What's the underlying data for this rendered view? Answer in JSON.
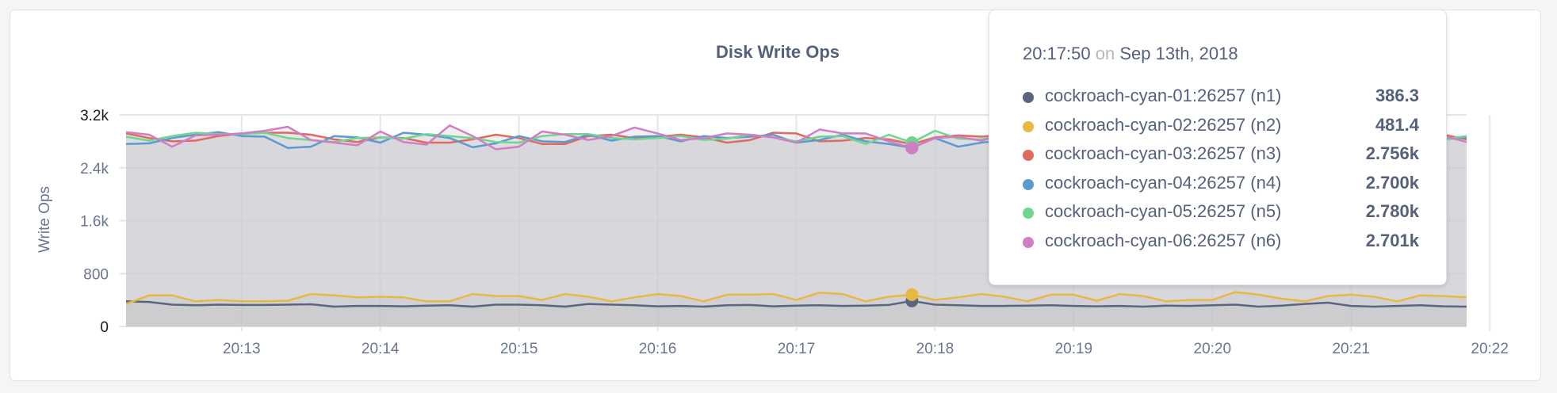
{
  "chart_data": {
    "type": "line",
    "title": "Disk Write Ops",
    "ylabel": "Write Ops",
    "xlabel": "",
    "ylim": [
      0,
      3200
    ],
    "yticks": [
      {
        "v": 0,
        "label": "0"
      },
      {
        "v": 800,
        "label": "800"
      },
      {
        "v": 1600,
        "label": "1.6k"
      },
      {
        "v": 2400,
        "label": "2.4k"
      },
      {
        "v": 3200,
        "label": "3.2k"
      }
    ],
    "xticks": [
      "20:13",
      "20:14",
      "20:15",
      "20:16",
      "20:17",
      "20:18",
      "20:19",
      "20:20",
      "20:21",
      "20:22"
    ],
    "x_start": "20:12:10",
    "x_step_seconds": 10,
    "grid": true,
    "series": [
      {
        "name": "cockroach-cyan-01:26257 (n1)",
        "color": "#5a6580",
        "values": [
          380,
          370,
          330,
          320,
          330,
          325,
          325,
          330,
          335,
          300,
          310,
          310,
          305,
          315,
          320,
          300,
          330,
          330,
          320,
          300,
          340,
          330,
          320,
          305,
          310,
          300,
          320,
          325,
          305,
          315,
          320,
          310,
          315,
          325,
          386,
          330,
          320,
          310,
          310,
          315,
          320,
          310,
          305,
          310,
          300,
          315,
          310,
          320,
          330,
          300,
          315,
          340,
          360,
          310,
          300,
          310,
          320,
          305,
          300
        ]
      },
      {
        "name": "cockroach-cyan-02:26257 (n2)",
        "color": "#e8b940",
        "values": [
          340,
          470,
          470,
          380,
          400,
          380,
          380,
          390,
          490,
          470,
          440,
          450,
          440,
          380,
          380,
          490,
          460,
          460,
          400,
          490,
          450,
          380,
          440,
          490,
          460,
          380,
          480,
          480,
          490,
          400,
          510,
          490,
          380,
          450,
          481,
          400,
          440,
          490,
          450,
          380,
          480,
          480,
          390,
          490,
          460,
          380,
          400,
          400,
          520,
          480,
          420,
          380,
          460,
          480,
          450,
          380,
          470,
          460,
          440
        ]
      },
      {
        "name": "cockroach-cyan-03:26257 (n3)",
        "color": "#e06a5f",
        "values": [
          2920,
          2850,
          2800,
          2810,
          2880,
          2920,
          2930,
          2930,
          2900,
          2830,
          2790,
          2860,
          2850,
          2780,
          2780,
          2830,
          2900,
          2850,
          2760,
          2760,
          2880,
          2900,
          2850,
          2870,
          2900,
          2860,
          2780,
          2820,
          2930,
          2920,
          2800,
          2810,
          2850,
          2830,
          2756,
          2860,
          2890,
          2870,
          2900,
          2820,
          2850,
          2880,
          2900,
          2860,
          2830,
          2870,
          2900,
          2850,
          2820,
          2880,
          2870,
          2900,
          2850,
          2830,
          2860,
          2880,
          2850,
          2900,
          2830
        ]
      },
      {
        "name": "cockroach-cyan-04:26257 (n4)",
        "color": "#5b9bd0",
        "values": [
          2760,
          2770,
          2850,
          2900,
          2940,
          2880,
          2870,
          2700,
          2720,
          2880,
          2860,
          2780,
          2930,
          2900,
          2850,
          2710,
          2770,
          2880,
          2800,
          2790,
          2900,
          2810,
          2870,
          2880,
          2800,
          2880,
          2850,
          2870,
          2900,
          2780,
          2820,
          2900,
          2800,
          2760,
          2700,
          2850,
          2720,
          2780,
          2820,
          2830,
          2840,
          2800,
          2760,
          2850,
          2820,
          2850,
          2880,
          2870,
          2790,
          2830,
          2800,
          2830,
          2860,
          2850,
          2780,
          2900,
          2870,
          2830,
          2860
        ]
      },
      {
        "name": "cockroach-cyan-05:26257 (n5)",
        "color": "#6fd690",
        "values": [
          2870,
          2810,
          2880,
          2930,
          2910,
          2910,
          2930,
          2850,
          2820,
          2790,
          2850,
          2860,
          2840,
          2910,
          2880,
          2850,
          2790,
          2780,
          2880,
          2910,
          2910,
          2850,
          2830,
          2850,
          2880,
          2820,
          2840,
          2900,
          2860,
          2800,
          2870,
          2880,
          2760,
          2900,
          2780,
          2960,
          2840,
          2830,
          2900,
          2810,
          2850,
          2870,
          2900,
          2830,
          2860,
          2880,
          2840,
          2890,
          2850,
          2820,
          2880,
          2850,
          2830,
          2900,
          2860,
          2840,
          2870,
          2830,
          2880
        ]
      },
      {
        "name": "cockroach-cyan-06:26257 (n6)",
        "color": "#d07fc4",
        "values": [
          2940,
          2900,
          2720,
          2890,
          2900,
          2920,
          2960,
          3020,
          2820,
          2780,
          2740,
          2950,
          2790,
          2750,
          3040,
          2880,
          2680,
          2720,
          2950,
          2900,
          2820,
          2880,
          3010,
          2920,
          2820,
          2850,
          2920,
          2900,
          2860,
          2780,
          2980,
          2920,
          2920,
          2800,
          2701,
          2850,
          2870,
          2810,
          2900,
          2860,
          2880,
          2850,
          2820,
          2900,
          2870,
          2830,
          2890,
          2860,
          2840,
          2810,
          2880,
          2900,
          2850,
          2830,
          2870,
          2850,
          2800,
          2880,
          2790
        ]
      }
    ],
    "tooltip": {
      "time": "20:17:50",
      "on": "on",
      "date": "Sep 13th, 2018",
      "hover_index": 34,
      "rows": [
        {
          "name": "cockroach-cyan-01:26257 (n1)",
          "value": "386.3",
          "color": "#5a6580"
        },
        {
          "name": "cockroach-cyan-02:26257 (n2)",
          "value": "481.4",
          "color": "#e8b940"
        },
        {
          "name": "cockroach-cyan-03:26257 (n3)",
          "value": "2.756k",
          "color": "#e06a5f"
        },
        {
          "name": "cockroach-cyan-04:26257 (n4)",
          "value": "2.700k",
          "color": "#5b9bd0"
        },
        {
          "name": "cockroach-cyan-05:26257 (n5)",
          "value": "2.780k",
          "color": "#6fd690"
        },
        {
          "name": "cockroach-cyan-06:26257 (n6)",
          "value": "2.701k",
          "color": "#d07fc4"
        }
      ]
    }
  }
}
